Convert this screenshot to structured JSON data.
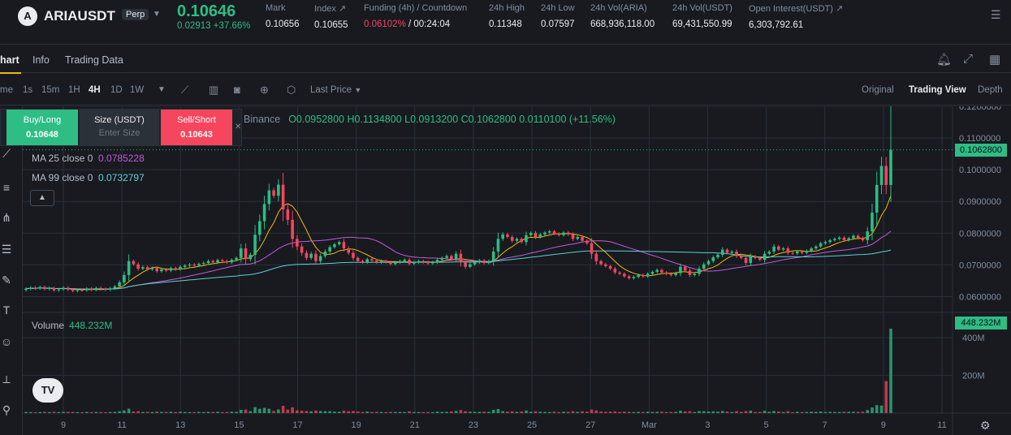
{
  "header": {
    "logo_glyph": "A",
    "symbol": "ARIAUSDT",
    "contract_type": "Perp",
    "last_price": "0.10646",
    "change": "0.02913 +37.66%",
    "stats": [
      {
        "label": "Mark",
        "value": "0.10656"
      },
      {
        "label": "Index ↗",
        "value": "0.10655"
      },
      {
        "label": "Funding (4h) / Countdown",
        "funding": "0.06102%",
        "countdown": " / 00:24:04"
      },
      {
        "label": "24h High",
        "value": "0.11348"
      },
      {
        "label": "24h Low",
        "value": "0.07597"
      },
      {
        "label": "24h Vol(ARIA)",
        "value": "668,936,118.00"
      },
      {
        "label": "24h Vol(USDT)",
        "value": "69,431,550.99"
      },
      {
        "label": "Open Interest(USDT) ↗",
        "value": "6,303,792.61"
      }
    ]
  },
  "tabs": [
    "hart",
    "Info",
    "Trading Data"
  ],
  "toolbar": {
    "time_label": "me",
    "intervals": [
      "1s",
      "15m",
      "1H",
      "4H",
      "1D",
      "1W"
    ],
    "active_interval": "4H",
    "price_type": "Last Price",
    "views": [
      "Original",
      "Trading View",
      "Depth"
    ],
    "active_view": "Trading View"
  },
  "order_box": {
    "buy_label": "Buy/Long",
    "buy_price": "0.10648",
    "size_label": "Size (USDT)",
    "size_placeholder": "Enter Size",
    "sell_label": "Sell/Short",
    "sell_price": "0.10643"
  },
  "legend": {
    "exchange": "Binance",
    "ohlc": "O0.0952800 H0.1134800 L0.0913200 C0.1062800 0.0110100 (+11.56%)",
    "ma25_label": "MA 25 close 0",
    "ma25_value": "0.0785228",
    "ma99_label": "MA 99 close 0",
    "ma99_value": "0.0732797",
    "volume_label": "Volume",
    "volume_value": "448.232M",
    "tv_logo": "TV"
  },
  "colors": {
    "up": "#2ebd85",
    "down": "#f6465d",
    "ma7": "#f0b90b",
    "ma25": "#c25bd9",
    "ma99": "#5fcfd4",
    "brand": "#f0b90b"
  },
  "chart_data": {
    "type": "candlestick",
    "interval": "4H",
    "price_axis": {
      "min": 0.055,
      "max": 0.12,
      "ticks": [
        "0.1200000",
        "0.1100000",
        "0.1000000",
        "0.0900000",
        "0.0800000",
        "0.0700000",
        "0.0600000"
      ]
    },
    "current_price_label": "0.1062800",
    "volume_axis": {
      "max": 500,
      "unit": "M",
      "ticks": [
        "400M",
        "200M"
      ],
      "current_label": "448.232M"
    },
    "x_ticks": [
      "9",
      "11",
      "13",
      "15",
      "17",
      "19",
      "21",
      "23",
      "25",
      "27",
      "Mar",
      "3",
      "5",
      "7",
      "9",
      "11"
    ],
    "close": [
      0.0625,
      0.0628,
      0.0626,
      0.063,
      0.0624,
      0.0627,
      0.062,
      0.0623,
      0.0628,
      0.0622,
      0.0618,
      0.0621,
      0.062,
      0.0625,
      0.0622,
      0.0627,
      0.0624,
      0.0622,
      0.0626,
      0.0632,
      0.0645,
      0.0668,
      0.0712,
      0.0702,
      0.0688,
      0.0693,
      0.0686,
      0.069,
      0.068,
      0.0686,
      0.0682,
      0.069,
      0.0686,
      0.0694,
      0.0698,
      0.0701,
      0.0698,
      0.0703,
      0.0706,
      0.0712,
      0.0708,
      0.0715,
      0.0712,
      0.0708,
      0.0716,
      0.0722,
      0.0752,
      0.0718,
      0.0732,
      0.0795,
      0.0838,
      0.0892,
      0.0935,
      0.0918,
      0.0953,
      0.0875,
      0.0842,
      0.0782,
      0.0758,
      0.0738,
      0.0722,
      0.0735,
      0.0712,
      0.0728,
      0.0742,
      0.0756,
      0.0765,
      0.0772,
      0.0752,
      0.0738,
      0.0722,
      0.0712,
      0.0708,
      0.0718,
      0.0714,
      0.0708,
      0.0712,
      0.0709,
      0.0703,
      0.0708,
      0.0712,
      0.0716,
      0.0704,
      0.0708,
      0.0712,
      0.0709,
      0.0705,
      0.0708,
      0.0716,
      0.0722,
      0.0728,
      0.0718,
      0.0735,
      0.0708,
      0.0694,
      0.0702,
      0.0708,
      0.0714,
      0.0706,
      0.0712,
      0.0742,
      0.0782,
      0.0796,
      0.0788,
      0.0776,
      0.0782,
      0.0772,
      0.0794,
      0.0801,
      0.0788,
      0.0796,
      0.0802,
      0.0806,
      0.0798,
      0.0794,
      0.0802,
      0.0796,
      0.0782,
      0.0788,
      0.0776,
      0.0768,
      0.0735,
      0.0712,
      0.0702,
      0.0696,
      0.0688,
      0.0676,
      0.0672,
      0.0664,
      0.0658,
      0.0662,
      0.0668,
      0.0664,
      0.0672,
      0.0678,
      0.0684,
      0.0676,
      0.0672,
      0.0668,
      0.0674,
      0.0694,
      0.0682,
      0.0668,
      0.0672,
      0.0688,
      0.0702,
      0.0712,
      0.0724,
      0.0732,
      0.0748,
      0.0738,
      0.0742,
      0.0728,
      0.0722,
      0.0706,
      0.0726,
      0.0722,
      0.0716,
      0.0735,
      0.0742,
      0.0758,
      0.0748,
      0.0752,
      0.0738,
      0.0736,
      0.0742,
      0.0738,
      0.0744,
      0.0752,
      0.0758,
      0.0768,
      0.0772,
      0.0778,
      0.0782,
      0.0786,
      0.0778,
      0.0784,
      0.0792,
      0.0785,
      0.0778,
      0.0806,
      0.0865,
      0.0952,
      0.1012,
      0.0952,
      0.10628
    ],
    "ma_legend": [
      {
        "name": "MA 25 close 0",
        "value": "0.0785228"
      },
      {
        "name": "MA 99 close 0",
        "value": "0.0732797"
      }
    ]
  }
}
